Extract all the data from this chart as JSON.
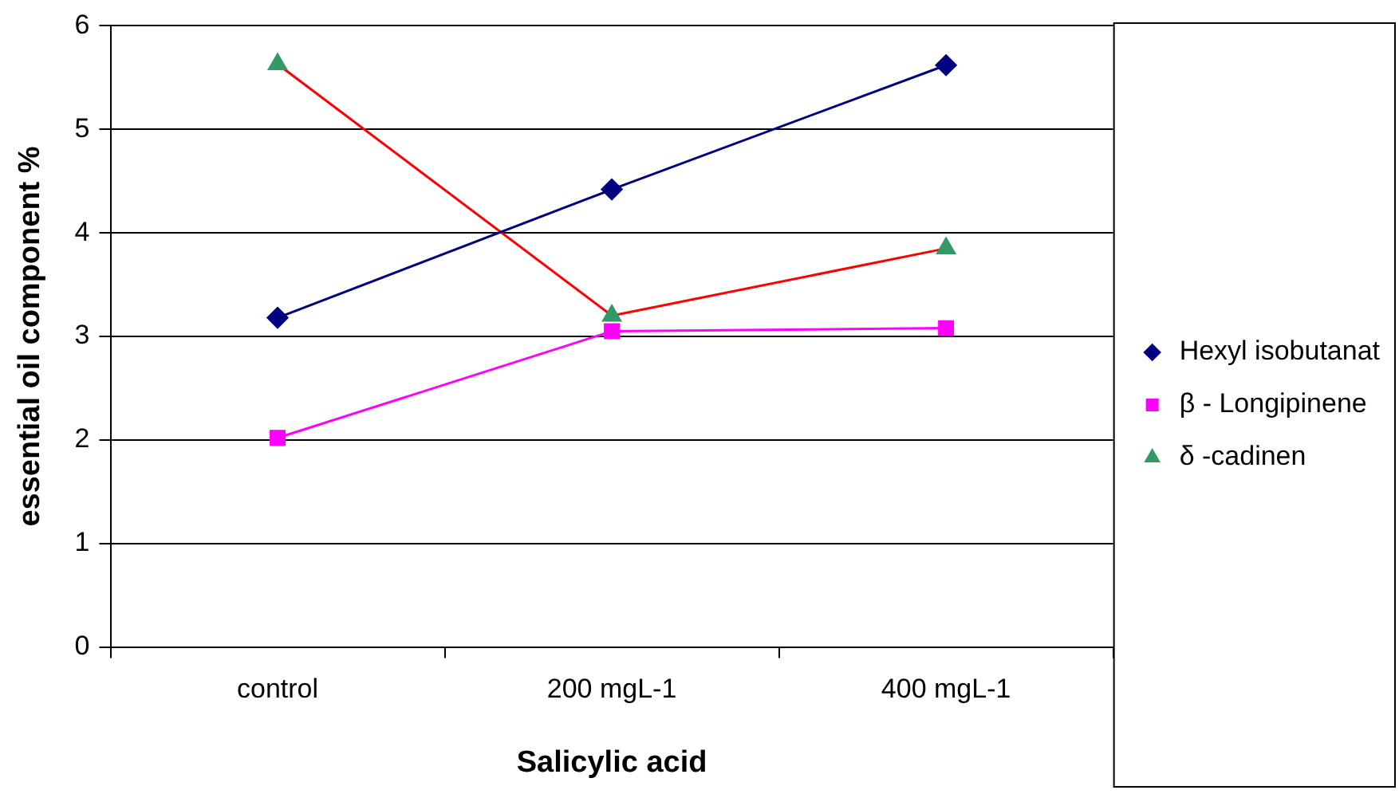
{
  "chart_data": {
    "type": "line",
    "xlabel": "Salicylic acid",
    "ylabel": "essential oil component %",
    "categories": [
      "control",
      "200 mgL-1",
      "400 mgL-1"
    ],
    "series": [
      {
        "name": "Hexyl isobutanat",
        "color": "#000080",
        "marker": "diamond",
        "values": [
          3.18,
          4.42,
          5.62
        ]
      },
      {
        "name": "β - Longipinene",
        "color": "#ff00ff",
        "marker": "square",
        "values": [
          2.02,
          3.05,
          3.08
        ]
      },
      {
        "name": "δ -cadinen",
        "color": "#ff0000",
        "colors": [
          "#339966",
          "#339966",
          "#339966"
        ],
        "marker": "triangle",
        "values": [
          5.63,
          3.2,
          3.85
        ]
      }
    ],
    "ylim": [
      0,
      6
    ],
    "yticks": [
      0,
      1,
      2,
      3,
      4,
      5,
      6
    ],
    "grid": "y",
    "legend": "right",
    "line_style": "solid"
  }
}
